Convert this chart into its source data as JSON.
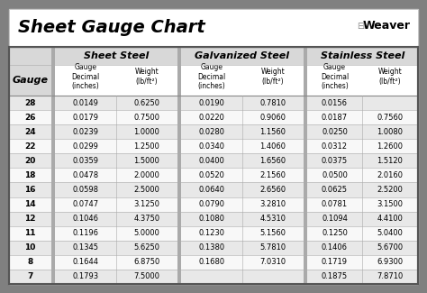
{
  "title": "Sheet Gauge Chart",
  "bg_outer": "#808080",
  "bg_inner": "#ffffff",
  "header_section_bg": "#d0d0d0",
  "header_sub_bg": "#ffffff",
  "row_bg_odd": "#e8e8e8",
  "row_bg_even": "#f8f8f8",
  "border_thick": "#555555",
  "border_thin": "#aaaaaa",
  "gauges": [
    28,
    26,
    24,
    22,
    20,
    18,
    16,
    14,
    12,
    11,
    10,
    8,
    7
  ],
  "sheet_steel": [
    [
      "0.0149",
      "0.6250"
    ],
    [
      "0.0179",
      "0.7500"
    ],
    [
      "0.0239",
      "1.0000"
    ],
    [
      "0.0299",
      "1.2500"
    ],
    [
      "0.0359",
      "1.5000"
    ],
    [
      "0.0478",
      "2.0000"
    ],
    [
      "0.0598",
      "2.5000"
    ],
    [
      "0.0747",
      "3.1250"
    ],
    [
      "0.1046",
      "4.3750"
    ],
    [
      "0.1196",
      "5.0000"
    ],
    [
      "0.1345",
      "5.6250"
    ],
    [
      "0.1644",
      "6.8750"
    ],
    [
      "0.1793",
      "7.5000"
    ]
  ],
  "galvanized_steel": [
    [
      "0.0190",
      "0.7810"
    ],
    [
      "0.0220",
      "0.9060"
    ],
    [
      "0.0280",
      "1.1560"
    ],
    [
      "0.0340",
      "1.4060"
    ],
    [
      "0.0400",
      "1.6560"
    ],
    [
      "0.0520",
      "2.1560"
    ],
    [
      "0.0640",
      "2.6560"
    ],
    [
      "0.0790",
      "3.2810"
    ],
    [
      "0.1080",
      "4.5310"
    ],
    [
      "0.1230",
      "5.1560"
    ],
    [
      "0.1380",
      "5.7810"
    ],
    [
      "0.1680",
      "7.0310"
    ],
    [
      "",
      ""
    ]
  ],
  "stainless_steel": [
    [
      "0.0156",
      ""
    ],
    [
      "0.0187",
      "0.7560"
    ],
    [
      "0.0250",
      "1.0080"
    ],
    [
      "0.0312",
      "1.2600"
    ],
    [
      "0.0375",
      "1.5120"
    ],
    [
      "0.0500",
      "2.0160"
    ],
    [
      "0.0625",
      "2.5200"
    ],
    [
      "0.0781",
      "3.1500"
    ],
    [
      "0.1094",
      "4.4100"
    ],
    [
      "0.1250",
      "5.0400"
    ],
    [
      "0.1406",
      "5.6700"
    ],
    [
      "0.1719",
      "6.9300"
    ],
    [
      "0.1875",
      "7.8710"
    ]
  ],
  "figsize": [
    4.74,
    3.25
  ],
  "dpi": 100
}
